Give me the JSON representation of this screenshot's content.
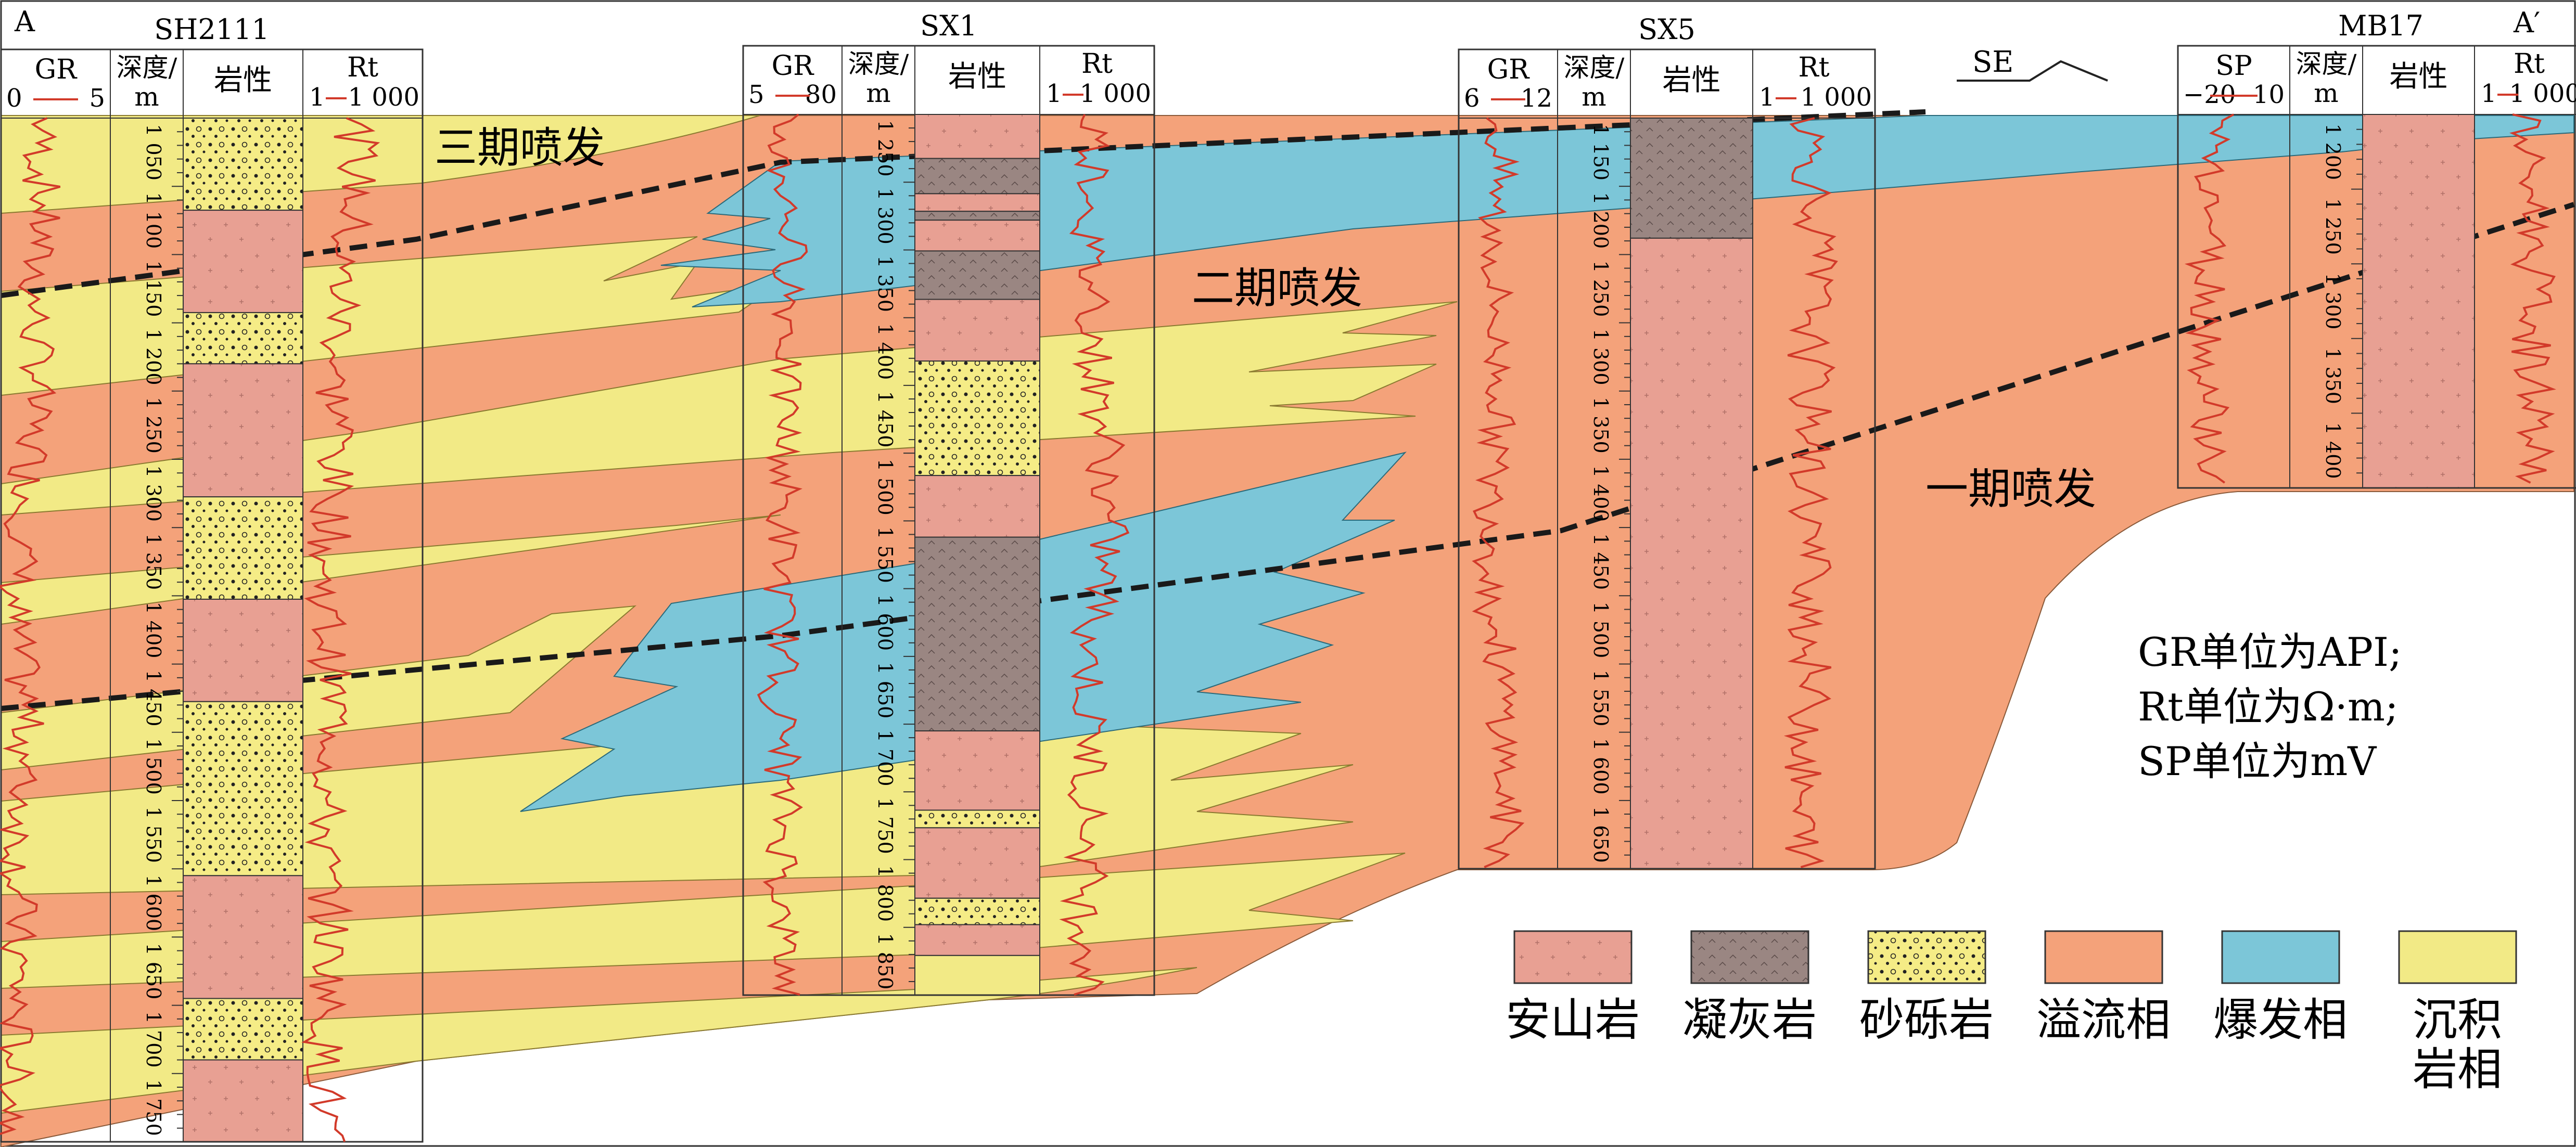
{
  "section": {
    "start_label": "A",
    "end_label": "A′",
    "direction_label": "SE"
  },
  "wells": [
    {
      "name": "SH2111",
      "log_left": {
        "name": "GR",
        "min": "0",
        "max": "5"
      },
      "depth_header": [
        "深度/",
        "m"
      ],
      "lith_header": "岩性",
      "log_right": {
        "name": "Rt",
        "min": "1",
        "max": "1 000"
      },
      "depth_ticks": [
        "1 050",
        "1 100",
        "1 150",
        "1 200",
        "1 250",
        "1 300",
        "1 350",
        "1 400",
        "1 450",
        "1 500",
        "1 550",
        "1 600",
        "1 650",
        "1 700",
        "1 750"
      ],
      "lithology": [
        {
          "type": "sandstone_conglomerate",
          "from": 0,
          "to": 0.09
        },
        {
          "type": "andesite",
          "from": 0.09,
          "to": 0.19
        },
        {
          "type": "sandstone_conglomerate",
          "from": 0.19,
          "to": 0.24
        },
        {
          "type": "andesite",
          "from": 0.24,
          "to": 0.37
        },
        {
          "type": "sandstone_conglomerate",
          "from": 0.37,
          "to": 0.47
        },
        {
          "type": "andesite",
          "from": 0.47,
          "to": 0.57
        },
        {
          "type": "sandstone_conglomerate",
          "from": 0.57,
          "to": 0.74
        },
        {
          "type": "andesite",
          "from": 0.74,
          "to": 0.86
        },
        {
          "type": "sandstone_conglomerate",
          "from": 0.86,
          "to": 0.92
        },
        {
          "type": "andesite",
          "from": 0.92,
          "to": 1
        }
      ]
    },
    {
      "name": "SX1",
      "log_left": {
        "name": "GR",
        "min": "5",
        "max": "80"
      },
      "depth_header": [
        "深度/",
        "m"
      ],
      "lith_header": "岩性",
      "log_right": {
        "name": "Rt",
        "min": "1",
        "max": "1 000"
      },
      "depth_ticks": [
        "1 250",
        "1 300",
        "1 350",
        "1 400",
        "1 450",
        "1 500",
        "1 550",
        "1 600",
        "1 650",
        "1 700",
        "1 750",
        "1 800",
        "1 850"
      ],
      "lithology": [
        {
          "type": "andesite",
          "from": 0,
          "to": 0.05
        },
        {
          "type": "tuff",
          "from": 0.05,
          "to": 0.09
        },
        {
          "type": "andesite",
          "from": 0.09,
          "to": 0.11
        },
        {
          "type": "tuff",
          "from": 0.11,
          "to": 0.12
        },
        {
          "type": "andesite",
          "from": 0.12,
          "to": 0.155
        },
        {
          "type": "tuff",
          "from": 0.155,
          "to": 0.21
        },
        {
          "type": "andesite",
          "from": 0.21,
          "to": 0.28
        },
        {
          "type": "sandstone_conglomerate",
          "from": 0.28,
          "to": 0.41
        },
        {
          "type": "andesite",
          "from": 0.41,
          "to": 0.48
        },
        {
          "type": "tuff",
          "from": 0.48,
          "to": 0.7
        },
        {
          "type": "andesite",
          "from": 0.7,
          "to": 0.79
        },
        {
          "type": "sandstone_conglomerate",
          "from": 0.79,
          "to": 0.81
        },
        {
          "type": "andesite",
          "from": 0.81,
          "to": 0.89
        },
        {
          "type": "sandstone_conglomerate",
          "from": 0.89,
          "to": 0.92
        },
        {
          "type": "andesite",
          "from": 0.92,
          "to": 0.955
        },
        {
          "type": "sedimentary",
          "from": 0.955,
          "to": 1
        }
      ]
    },
    {
      "name": "SX5",
      "log_left": {
        "name": "GR",
        "min": "6",
        "max": "12"
      },
      "depth_header": [
        "深度/",
        "m"
      ],
      "lith_header": "岩性",
      "log_right": {
        "name": "Rt",
        "min": "1",
        "max": "1 000"
      },
      "depth_ticks": [
        "1 150",
        "1 200",
        "1 250",
        "1 300",
        "1 350",
        "1 400",
        "1 450",
        "1 500",
        "1 550",
        "1 600",
        "1 650"
      ],
      "lithology": [
        {
          "type": "tuff",
          "from": 0,
          "to": 0.16
        },
        {
          "type": "andesite",
          "from": 0.16,
          "to": 1
        }
      ]
    },
    {
      "name": "MB17",
      "log_left": {
        "name": "SP",
        "min": "−20",
        "max": "10"
      },
      "depth_header": [
        "深度/",
        "m"
      ],
      "lith_header": "岩性",
      "log_right": {
        "name": "Rt",
        "min": "1",
        "max": "1 000"
      },
      "depth_ticks": [
        "1 200",
        "1 250",
        "1 300",
        "1 350",
        "1 400"
      ],
      "lithology": [
        {
          "type": "andesite",
          "from": 0,
          "to": 1
        }
      ]
    }
  ],
  "stage_labels": [
    {
      "id": "stage-3",
      "text": "三期喷发"
    },
    {
      "id": "stage-2",
      "text": "二期喷发"
    },
    {
      "id": "stage-1",
      "text": "一期喷发"
    }
  ],
  "units_note": [
    "GR单位为API;",
    "Rt单位为Ω·m;",
    "SP单位为mV"
  ],
  "legend": [
    {
      "id": "andesite",
      "label": "安山岩",
      "color": "#e8a093"
    },
    {
      "id": "tuff",
      "label": "凝灰岩",
      "color": "#9a8682"
    },
    {
      "id": "sandstone_conglomerate",
      "label": "砂砾岩",
      "color": "#f5ec86"
    },
    {
      "id": "effusive_facies",
      "label": "溢流相",
      "color": "#f4a27a"
    },
    {
      "id": "explosive_facies",
      "label": "爆发相",
      "color": "#7cc6d8"
    },
    {
      "id": "sedimentary_facies",
      "label": "沉积\n岩相",
      "color": "#f2ea86"
    }
  ],
  "colors": {
    "effusive": "#f4a27a",
    "explosive": "#7cc6d8",
    "sedimentary": "#f2ea86",
    "andesite": "#e8a093",
    "tuff": "#9a8682",
    "sandstone": "#f5ec86",
    "log_curve": "#d23a2a",
    "boundary_dash": "#1a1a1a"
  }
}
